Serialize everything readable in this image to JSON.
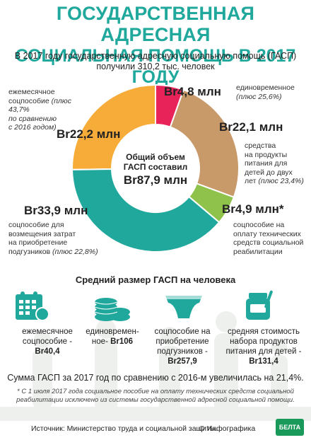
{
  "title": {
    "line1": "ГОСУДАРСТВЕННАЯ АДРЕСНАЯ",
    "line2": "СОЦИАЛЬНАЯ ПОМОЩЬ В 2017 ГОДУ"
  },
  "intro": {
    "line1": "В 2017 году государственную адресную социальную помощь (ГАСП)",
    "line2": "получили 310,2 тыс. человек"
  },
  "chart_data": {
    "type": "pie",
    "variant": "donut",
    "unit": "Br млн",
    "center": {
      "label_line1": "Общий объем",
      "label_line2": "ГАСП составил",
      "value": "Br87,9 млн"
    },
    "slices": [
      {
        "key": "monthly",
        "value": 22.2,
        "value_label": "Br22,2 млн",
        "label": "ежемесячное соцпособие",
        "note": "(плюс 43,7% по сравнению с 2016 годом)",
        "color": "#f7ac3a"
      },
      {
        "key": "onetime",
        "value": 4.8,
        "value_label": "Br4,8 млн",
        "label": "единовременное",
        "note": "(плюс 25,6%)",
        "color": "#e8235a"
      },
      {
        "key": "food",
        "value": 22.1,
        "value_label": "Br22,1 млн",
        "label": "средства на продукты питания для детей до двух лет",
        "note": "(плюс 23,4%)",
        "color": "#c89a6a"
      },
      {
        "key": "technical",
        "value": 4.9,
        "value_label": "Br4,9 млн*",
        "label": "соцпособие на оплату технических средств социальной реабилитации",
        "note": "",
        "color": "#8fc24a"
      },
      {
        "key": "diapers",
        "value": 33.9,
        "value_label": "Br33,9 млн",
        "label": "соцпособие для возмещения затрат на приобретение подгузников",
        "note": "(плюс 22,8%)",
        "color": "#1fa89b"
      }
    ]
  },
  "labels": {
    "monthly": {
      "l1": "ежемесячное",
      "l2": "соцпособие",
      "n1": "(плюс 43,7%",
      "n2": "по сравнению",
      "n3": "с 2016 годом)"
    },
    "onetime": {
      "l1": "единовременное",
      "n1": "(плюс 25,6%)"
    },
    "food": {
      "l1": "средства",
      "l2": "на продукты",
      "l3": "питания для",
      "l4": "детей до двух",
      "l5": "лет",
      "n1": "(плюс 23,4%)"
    },
    "technical": {
      "l1": "соцпособие на",
      "l2": "оплату технических",
      "l3": "средств социальной",
      "l4": "реабилитации"
    },
    "diapers": {
      "l1": "соцпособие для",
      "l2": "возмещения затрат",
      "l3": "на приобретение",
      "l4": "подгузников",
      "n1": "(плюс 22,8%)"
    }
  },
  "average": {
    "title": "Средний размер ГАСП на человека",
    "items": [
      {
        "l1": "ежемесячное",
        "l2": "соцпособие -",
        "value": "Br40,4"
      },
      {
        "l1": "единовремен-",
        "l2": "ное-",
        "value": "Br106"
      },
      {
        "l1": "соцпособие на",
        "l2": "приобретение",
        "l3": "подгузников -",
        "value": "Br257,9"
      },
      {
        "l1": "средняя стоимость",
        "l2": "набора продуктов",
        "l3": "питания для детей -",
        "value": "Br131,4"
      }
    ]
  },
  "summary": "Сумма ГАСП за 2017 год по сравнению с 2016-м увеличилась на 21,4%.",
  "footnote": {
    "line1": "* С 1 июля 2017 года социальное пособие на оплату технических средств социальной",
    "line2": "реабилитации исключено из системы государственной адресной социальной помощи."
  },
  "source": "Источник: Министерство труда и социальной защиты.",
  "copyright": "© Инфографика",
  "logo": "БЕЛТА",
  "colors": {
    "title": "#1fa89b",
    "icons": "#1fa89b"
  }
}
